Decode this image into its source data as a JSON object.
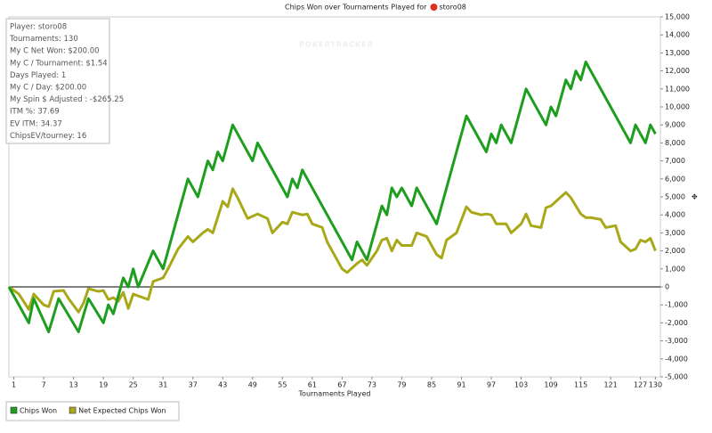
{
  "chart_data": {
    "type": "line",
    "title": "Chips Won over Tournaments Played for",
    "subject": "storo08",
    "watermark": "POKERTRACKER",
    "x_label": "Tournaments Played",
    "annotations": [
      "Player: storo08",
      "Tournaments: 130",
      "My C Net Won: $200.00",
      "My C / Tournament: $1.54",
      "Days Played: 1",
      "My C / Day: $200.00",
      "My Spin $ Adjusted : -$265.25",
      "ITM %: 37.69",
      "EV ITM: 34.37",
      "ChipsEV/tourney: 16"
    ],
    "xlim": [
      0,
      131
    ],
    "xticks": [
      1,
      7,
      13,
      19,
      25,
      31,
      37,
      43,
      49,
      55,
      61,
      67,
      73,
      79,
      85,
      91,
      97,
      103,
      109,
      115,
      121,
      127,
      130
    ],
    "ylim": [
      -5000,
      15000
    ],
    "yticks": [
      {
        "value": -5000,
        "label": "-5,000"
      },
      {
        "value": -4000,
        "label": "-4,000"
      },
      {
        "value": -3000,
        "label": "-3,000"
      },
      {
        "value": -2000,
        "label": "-2,000"
      },
      {
        "value": -1000,
        "label": "-1,000"
      },
      0,
      {
        "value": 1000,
        "label": "1,000"
      },
      {
        "value": 2000,
        "label": "2,000"
      },
      {
        "value": 3000,
        "label": "3,000"
      },
      {
        "value": 4000,
        "label": "4,000"
      },
      {
        "value": 5000,
        "label": "5,000"
      },
      {
        "value": 6000,
        "label": "6,000"
      },
      {
        "value": 7000,
        "label": "7,000"
      },
      {
        "value": 8000,
        "label": "8,000"
      },
      {
        "value": 9000,
        "label": "9,000"
      },
      {
        "value": 10000,
        "label": "10,000"
      },
      {
        "value": 11000,
        "label": "11,000"
      },
      {
        "value": 12000,
        "label": "12,000"
      },
      {
        "value": 13000,
        "label": "13,000"
      },
      {
        "value": 14000,
        "label": "14,000"
      },
      {
        "value": 15000,
        "label": "15,000"
      }
    ],
    "series": [
      {
        "name": "Chips Won",
        "color": "#1e9e1e",
        "x": [
          0,
          4,
          5,
          8,
          10,
          14,
          16,
          19,
          20,
          21,
          23,
          24,
          25,
          26,
          29,
          31,
          36,
          38,
          40,
          41,
          42,
          43,
          45,
          49,
          50,
          56,
          57,
          58,
          59,
          69,
          70,
          72,
          75,
          76,
          77,
          78,
          79,
          81,
          82,
          86,
          92,
          96,
          97,
          98,
          99,
          101,
          104,
          108,
          109,
          110,
          112,
          113,
          114,
          115,
          116,
          125,
          126,
          128,
          129,
          130
        ],
        "values": [
          0,
          -2000,
          -650,
          -2500,
          -650,
          -2500,
          -650,
          -2000,
          -1000,
          -1500,
          500,
          0,
          1000,
          0,
          2000,
          1000,
          6000,
          5000,
          7000,
          6500,
          7500,
          7000,
          9000,
          7000,
          8000,
          5000,
          6000,
          5500,
          6500,
          1500,
          2500,
          1500,
          4500,
          4000,
          5500,
          5000,
          5500,
          4500,
          5500,
          3500,
          9500,
          7500,
          8500,
          8000,
          9000,
          8000,
          11000,
          9000,
          10000,
          9500,
          11500,
          11000,
          12000,
          11500,
          12500,
          8000,
          9000,
          8000,
          9000,
          8500
        ]
      },
      {
        "name": "Net Expected Chips Won",
        "color": "#a8a818",
        "x": [
          0,
          2,
          4,
          5,
          7,
          8,
          9,
          11,
          12,
          14,
          15,
          16,
          18,
          19,
          20,
          21,
          22,
          23,
          24,
          25,
          27,
          28,
          29,
          31,
          32,
          34,
          36,
          37,
          39,
          40,
          41,
          43,
          44,
          45,
          46,
          48,
          50,
          52,
          53,
          55,
          56,
          57,
          59,
          60,
          61,
          63,
          64,
          66,
          67,
          68,
          70,
          71,
          72,
          74,
          75,
          76,
          77,
          78,
          79,
          81,
          82,
          84,
          86,
          87,
          88,
          90,
          92,
          93,
          95,
          96,
          97,
          98,
          100,
          101,
          103,
          104,
          105,
          107,
          108,
          109,
          110,
          112,
          113,
          115,
          116,
          117,
          119,
          120,
          122,
          123,
          125,
          126,
          127,
          128,
          129,
          130
        ],
        "values": [
          0,
          -400,
          -1250,
          -400,
          -1000,
          -1100,
          -250,
          -200,
          -650,
          -1400,
          -900,
          -100,
          -250,
          -200,
          -700,
          -600,
          -800,
          -300,
          -1200,
          -400,
          -600,
          -700,
          300,
          500,
          1000,
          2100,
          2800,
          2500,
          3000,
          3200,
          3000,
          4750,
          4450,
          5450,
          4950,
          3800,
          4050,
          3800,
          3000,
          3600,
          3500,
          4150,
          4000,
          4050,
          3500,
          3300,
          2500,
          1500,
          1000,
          800,
          1300,
          1500,
          1200,
          2000,
          2600,
          2700,
          2000,
          2600,
          2300,
          2300,
          3000,
          2800,
          1800,
          1600,
          2600,
          3000,
          4450,
          4150,
          4000,
          4050,
          4000,
          3500,
          3500,
          3000,
          3500,
          4050,
          3400,
          3300,
          4400,
          4500,
          4750,
          5250,
          4950,
          4050,
          3850,
          3850,
          3750,
          3300,
          3400,
          2500,
          2000,
          2100,
          2600,
          2500,
          2700,
          2000
        ]
      }
    ]
  }
}
